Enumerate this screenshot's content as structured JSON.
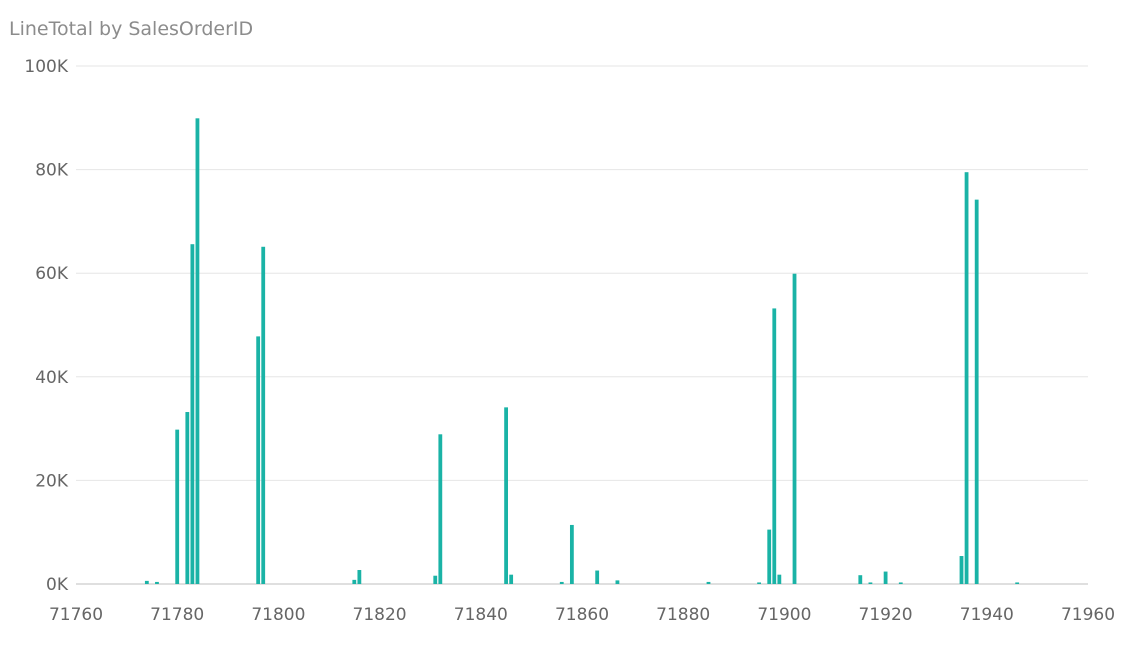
{
  "chart_data": {
    "type": "bar",
    "title": "LineTotal by SalesOrderID",
    "xlabel": "",
    "ylabel": "",
    "xlim": [
      71760,
      71960
    ],
    "ylim": [
      0,
      100000
    ],
    "x_ticks": [
      71760,
      71780,
      71800,
      71820,
      71840,
      71860,
      71880,
      71900,
      71920,
      71940,
      71960
    ],
    "x_tick_labels": [
      "71760",
      "71780",
      "71800",
      "71820",
      "71840",
      "71860",
      "71880",
      "71900",
      "71920",
      "71940",
      "71960"
    ],
    "y_ticks": [
      0,
      20000,
      40000,
      60000,
      80000,
      100000
    ],
    "y_tick_labels": [
      "0K",
      "20K",
      "40K",
      "60K",
      "80K",
      "100K"
    ],
    "grid": true,
    "bar_color": "#1ab3a6",
    "x": [
      71774,
      71776,
      71780,
      71782,
      71783,
      71784,
      71796,
      71797,
      71815,
      71816,
      71831,
      71832,
      71845,
      71846,
      71856,
      71858,
      71863,
      71867,
      71885,
      71895,
      71897,
      71898,
      71899,
      71902,
      71915,
      71917,
      71920,
      71923,
      71935,
      71936,
      71938,
      71946
    ],
    "values": [
      602,
      400,
      29800,
      33200,
      65600,
      89900,
      47800,
      65100,
      800,
      2700,
      1600,
      28900,
      34100,
      1800,
      400,
      11400,
      2600,
      700,
      400,
      300,
      10500,
      53200,
      1800,
      59900,
      1700,
      300,
      2400,
      300,
      5400,
      79500,
      74200,
      300
    ]
  }
}
